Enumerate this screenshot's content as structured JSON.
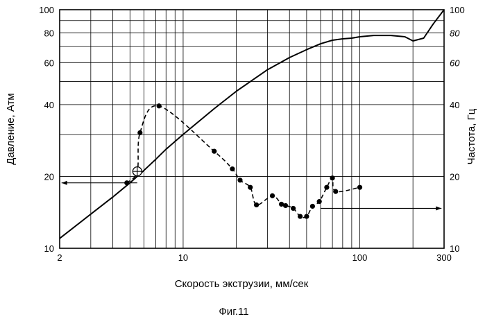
{
  "chart_data": {
    "type": "line",
    "caption": "Фиг.11",
    "xlabel": "Скорость экструзии, мм/сек",
    "ylabel_left": "Давление, Атм",
    "ylabel_right": "Частота, Гц",
    "x_scale": "log",
    "y_scale": "log",
    "xlim": [
      2,
      300
    ],
    "ylim": [
      10,
      100
    ],
    "grid": true,
    "x_tick_labels": [
      "2",
      "10",
      "100",
      "300"
    ],
    "y_tick_labels_left": [
      "10",
      "20",
      "40",
      "60",
      "80",
      "100"
    ],
    "y_tick_labels_right": [
      "10",
      "20",
      "40",
      "60",
      "80",
      "100"
    ],
    "x_gridlines": [
      2,
      3,
      4,
      5,
      6,
      7,
      8,
      9,
      10,
      20,
      30,
      40,
      50,
      60,
      70,
      80,
      90,
      100,
      200,
      300
    ],
    "y_gridlines": [
      10,
      20,
      30,
      40,
      50,
      60,
      70,
      80,
      90,
      100
    ],
    "series": [
      {
        "style": "solid",
        "axis": "left",
        "x": [
          2,
          3,
          4,
          5,
          6,
          7,
          8,
          10,
          15,
          20,
          30,
          40,
          50,
          60,
          70,
          80,
          90,
          100,
          120,
          150,
          180,
          200,
          230,
          260,
          300
        ],
        "y": [
          11,
          13.9,
          16.4,
          18.8,
          21.2,
          23.6,
          26,
          30,
          38.5,
          45.5,
          56,
          63,
          68,
          72,
          74.5,
          75.5,
          76,
          77,
          78,
          78,
          77,
          74,
          76,
          87,
          100
        ]
      },
      {
        "style": "dashed",
        "axis": "right",
        "markers": true,
        "x": [
          4.8,
          5.5,
          5.7,
          7.3,
          15,
          19,
          21,
          24,
          26,
          32,
          36,
          38,
          42,
          46,
          50,
          54,
          59,
          65,
          70,
          73,
          100
        ],
        "y": [
          18.8,
          21,
          30.5,
          39.5,
          25.5,
          21.5,
          19.3,
          18,
          15.2,
          16.6,
          15.3,
          15.1,
          14.7,
          13.6,
          13.6,
          15,
          15.7,
          18,
          19.7,
          17.3,
          18
        ]
      }
    ],
    "annotations": [
      {
        "type": "arrow",
        "direction": "left",
        "from_x": 5.5,
        "to_x": 2.05,
        "y": 18.8
      },
      {
        "type": "arrow",
        "direction": "right",
        "from_x": 60,
        "to_x": 290,
        "y": 14.7
      },
      {
        "type": "circle-cross",
        "x": 5.5,
        "y": 21
      }
    ]
  }
}
